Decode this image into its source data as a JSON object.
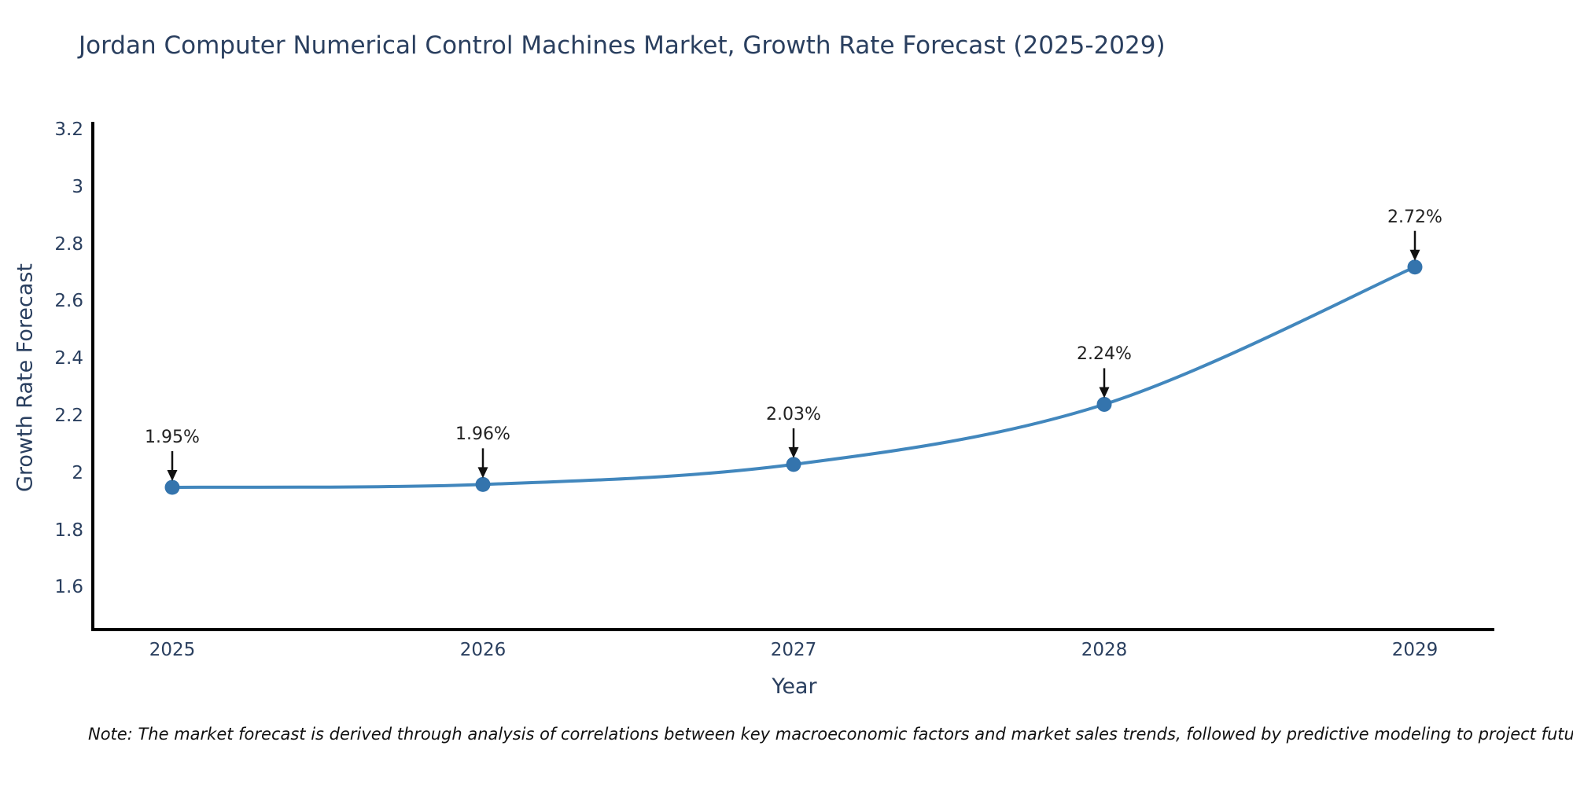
{
  "chart": {
    "title": "Jordan Computer Numerical Control Machines Market, Growth Rate Forecast (2025-2029)",
    "yaxis_title": "Growth Rate Forecast",
    "xaxis_title": "Year",
    "note": "Note: The market forecast is derived through analysis of correlations between key macroeconomic factors and market sales trends, followed by predictive modeling to project future sales",
    "colors": {
      "line": "#4287bd",
      "marker": "#3474ad",
      "arrow": "#111111",
      "annotation_text": "#222222",
      "axis_line": "#000000",
      "text": "#2a3f5f",
      "background": "#ffffff"
    }
  },
  "chart_data": {
    "type": "line",
    "line_shape": "spline",
    "markers": true,
    "grid": false,
    "legend_visible": false,
    "title": "Jordan Computer Numerical Control Machines Market, Growth Rate Forecast (2025-2029)",
    "xlabel": "Year",
    "ylabel": "Growth Rate Forecast",
    "x": [
      2025,
      2026,
      2027,
      2028,
      2029
    ],
    "values": [
      1.95,
      1.96,
      2.03,
      2.24,
      2.72
    ],
    "point_labels": [
      "1.95%",
      "1.96%",
      "2.03%",
      "2.24%",
      "2.72%"
    ],
    "xticks": [
      "2025",
      "2026",
      "2027",
      "2028",
      "2029"
    ],
    "yticks": [
      "3.2",
      "3",
      "2.8",
      "2.6",
      "2.4",
      "2.2",
      "2",
      "1.8",
      "1.6"
    ],
    "ytick_values": [
      3.2,
      3.0,
      2.8,
      2.6,
      2.4,
      2.2,
      2.0,
      1.8,
      1.6
    ],
    "ylim": [
      1.45,
      3.23
    ],
    "xlim_categories": [
      "2025",
      "2029"
    ]
  }
}
